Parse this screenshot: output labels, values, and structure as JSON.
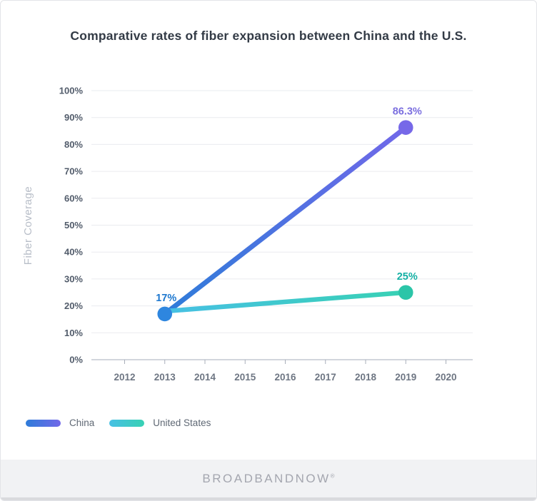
{
  "chart_data": {
    "type": "line",
    "title": "Comparative rates of fiber expansion between China and the U.S.",
    "xlabel": "",
    "ylabel": "Fiber Coverage",
    "ylim": [
      0,
      100
    ],
    "ytick_step": 10,
    "yticks": [
      "100%",
      "90%",
      "80%",
      "70%",
      "60%",
      "50%",
      "40%",
      "30%",
      "20%",
      "10%",
      "0%"
    ],
    "categories": [
      "2012",
      "2013",
      "2014",
      "2015",
      "2016",
      "2017",
      "2018",
      "2019",
      "2020"
    ],
    "grid": true,
    "legend_position": "bottom-left",
    "series": [
      {
        "name": "China",
        "x": [
          2013,
          2019
        ],
        "values": [
          17,
          86.3
        ],
        "point_labels": [
          "17%",
          "86.3%"
        ],
        "point_label_colors": [
          "#1c77cf",
          "#7b6fdf"
        ],
        "point_colors": [
          "#2e86df",
          "#7668e8"
        ],
        "gradient": [
          "#2e7cd9",
          "#7168e9"
        ],
        "line_width": 7
      },
      {
        "name": "United States",
        "x": [
          2013,
          2019
        ],
        "values": [
          18,
          25
        ],
        "point_labels": [
          "",
          "25%"
        ],
        "point_label_colors": [
          "",
          "#14b0a4"
        ],
        "point_colors": [
          "",
          "#2bc5a8"
        ],
        "gradient": [
          "#47c0e4",
          "#38d1b4"
        ],
        "line_width": 6.5
      }
    ]
  },
  "footer": {
    "brand": "BROADBANDNOW",
    "registered_mark": "®"
  },
  "colors": {
    "card_border": "#e3e4e8",
    "title": "#333b46",
    "grid": "#eaebef",
    "axis": "#c4c9d2",
    "tick": "#a9afba",
    "ytick_text": "#525c6b",
    "xtick_text": "#6e7683",
    "ylabel_text": "#b8bec8",
    "legend_text": "#5f6874",
    "footer_bg": "#f1f2f4",
    "footer_text": "#a4a6af",
    "bottom_strip": "#d9dadd"
  }
}
